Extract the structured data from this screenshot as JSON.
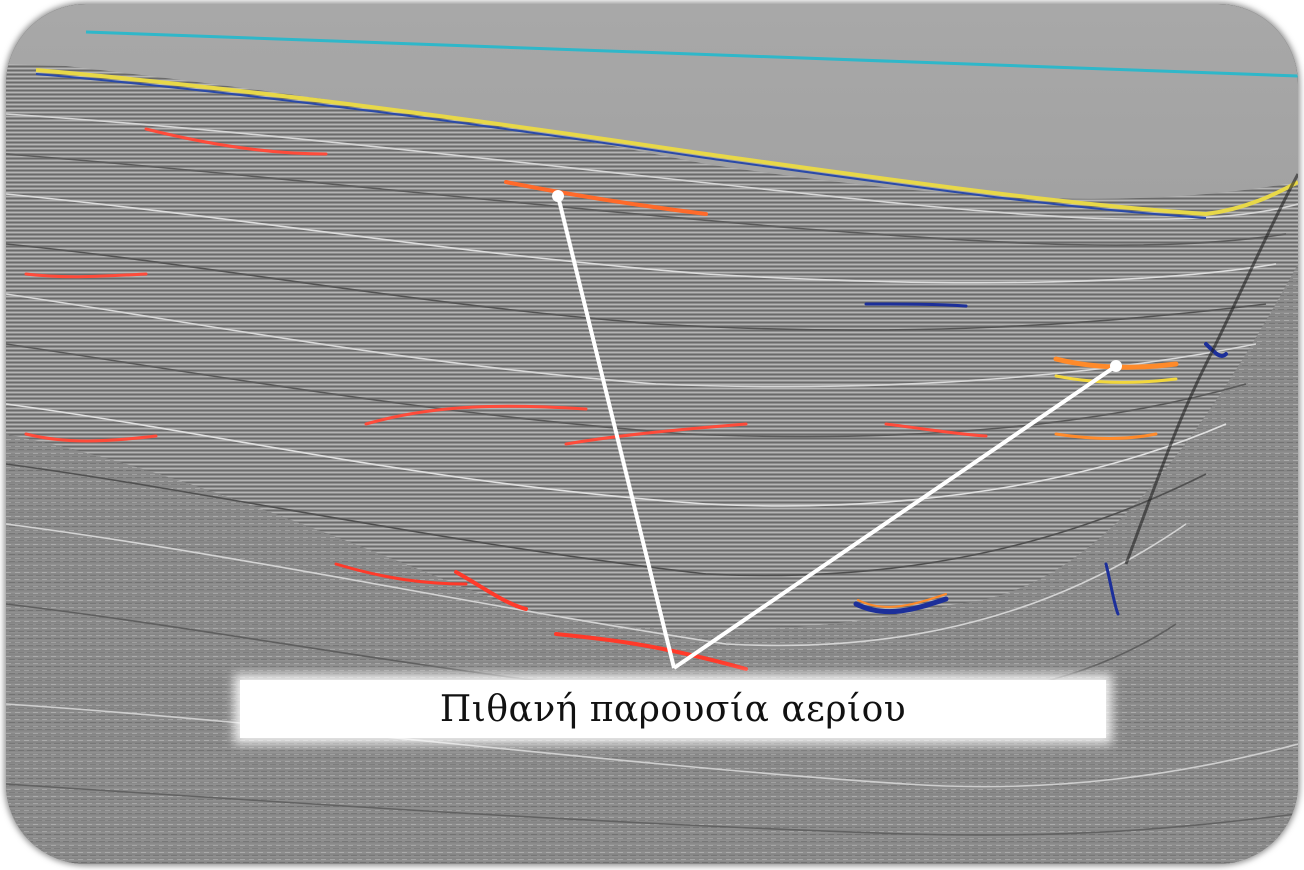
{
  "annotation": {
    "label": "Πιθανή παρουσία αερίου",
    "pointer_color": "#ffffff"
  },
  "image": {
    "subject": "seismic-reflection-profile",
    "palette": {
      "background": "#8c8c8c",
      "sky_band": "#9a9a9a",
      "seafloor_line": "#2fb7c9",
      "amplitude_high": "#ff5a3c",
      "amplitude_low": "#1a2a8c",
      "amplitude_mid": "#f2e24a"
    }
  }
}
